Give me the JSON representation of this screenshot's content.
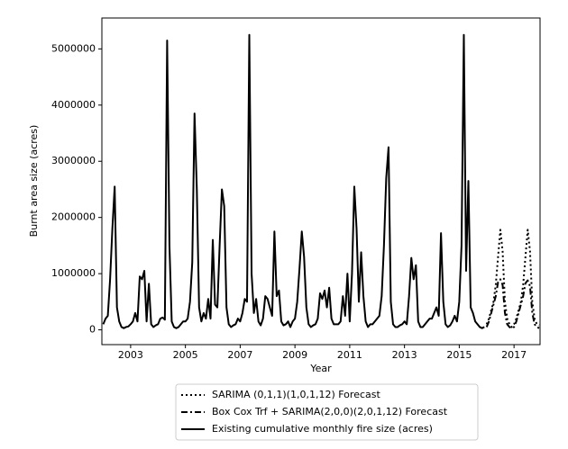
{
  "chart_data": {
    "type": "line",
    "x_label": "Year",
    "y_label": "Burnt area size (acres)",
    "xlim": [
      2001.95,
      2017.95
    ],
    "ylim": [
      -263000,
      5550000
    ],
    "xticks": [
      2003,
      2005,
      2007,
      2009,
      2011,
      2013,
      2015,
      2017
    ],
    "yticks": [
      0,
      1000000,
      2000000,
      3000000,
      4000000,
      5000000
    ],
    "legend": "below",
    "series": [
      {
        "name": "SARIMA (0,1,1)(1,0,1,12) Forecast",
        "color": "#000000",
        "dash": "dotted",
        "x": [
          2016,
          2016.083,
          2016.167,
          2016.25,
          2016.333,
          2016.417,
          2016.5,
          2016.583,
          2016.667,
          2016.75,
          2016.833,
          2016.917,
          2017,
          2017.083,
          2017.167,
          2017.25,
          2017.333,
          2017.417,
          2017.5,
          2017.583,
          2017.667,
          2017.75,
          2017.833,
          2017.917
        ],
        "values": [
          100000,
          200000,
          350000,
          500000,
          800000,
          1300000,
          1780000,
          1400000,
          500000,
          200000,
          100000,
          50000,
          100000,
          200000,
          350000,
          500000,
          800000,
          1300000,
          1780000,
          1400000,
          500000,
          200000,
          100000,
          80000
        ]
      },
      {
        "name": "Box Cox Trf + SARIMA(2,0,0)(2,0,1,12) Forecast",
        "color": "#000000",
        "dash": "dashdot",
        "x": [
          2016,
          2016.083,
          2016.167,
          2016.25,
          2016.333,
          2016.417,
          2016.5,
          2016.583,
          2016.667,
          2016.75,
          2016.833,
          2016.917,
          2017,
          2017.083,
          2017.167,
          2017.25,
          2017.333,
          2017.417,
          2017.5,
          2017.583,
          2017.667,
          2017.75,
          2017.833,
          2017.917
        ],
        "values": [
          50000,
          150000,
          300000,
          450000,
          600000,
          850000,
          900000,
          800000,
          300000,
          100000,
          50000,
          30000,
          50000,
          150000,
          300000,
          450000,
          600000,
          830000,
          880000,
          780000,
          300000,
          100000,
          50000,
          30000
        ]
      },
      {
        "name": "Existing cumulative monthly fire size (acres)",
        "color": "#000000",
        "dash": "solid",
        "x": [
          2002,
          2002.083,
          2002.167,
          2002.25,
          2002.333,
          2002.417,
          2002.5,
          2002.583,
          2002.667,
          2002.75,
          2002.833,
          2002.917,
          2003,
          2003.083,
          2003.167,
          2003.25,
          2003.333,
          2003.417,
          2003.5,
          2003.583,
          2003.667,
          2003.75,
          2003.833,
          2003.917,
          2004,
          2004.083,
          2004.167,
          2004.25,
          2004.333,
          2004.417,
          2004.5,
          2004.583,
          2004.667,
          2004.75,
          2004.833,
          2004.917,
          2005,
          2005.083,
          2005.167,
          2005.25,
          2005.333,
          2005.417,
          2005.5,
          2005.583,
          2005.667,
          2005.75,
          2005.833,
          2005.917,
          2006,
          2006.083,
          2006.167,
          2006.25,
          2006.333,
          2006.417,
          2006.5,
          2006.583,
          2006.667,
          2006.75,
          2006.833,
          2006.917,
          2007,
          2007.083,
          2007.167,
          2007.25,
          2007.333,
          2007.417,
          2007.5,
          2007.583,
          2007.667,
          2007.75,
          2007.833,
          2007.917,
          2008,
          2008.083,
          2008.167,
          2008.25,
          2008.333,
          2008.417,
          2008.5,
          2008.583,
          2008.667,
          2008.75,
          2008.833,
          2008.917,
          2009,
          2009.083,
          2009.167,
          2009.25,
          2009.333,
          2009.417,
          2009.5,
          2009.583,
          2009.667,
          2009.75,
          2009.833,
          2009.917,
          2010,
          2010.083,
          2010.167,
          2010.25,
          2010.333,
          2010.417,
          2010.5,
          2010.583,
          2010.667,
          2010.75,
          2010.833,
          2010.917,
          2011,
          2011.083,
          2011.167,
          2011.25,
          2011.333,
          2011.417,
          2011.5,
          2011.583,
          2011.667,
          2011.75,
          2011.833,
          2011.917,
          2012,
          2012.083,
          2012.167,
          2012.25,
          2012.333,
          2012.417,
          2012.5,
          2012.583,
          2012.667,
          2012.75,
          2012.833,
          2012.917,
          2013,
          2013.083,
          2013.167,
          2013.25,
          2013.333,
          2013.417,
          2013.5,
          2013.583,
          2013.667,
          2013.75,
          2013.833,
          2013.917,
          2014,
          2014.083,
          2014.167,
          2014.25,
          2014.333,
          2014.417,
          2014.5,
          2014.583,
          2014.667,
          2014.75,
          2014.833,
          2014.917,
          2015,
          2015.083,
          2015.167,
          2015.25,
          2015.333,
          2015.417,
          2015.5,
          2015.583,
          2015.667,
          2015.75,
          2015.833,
          2015.917
        ],
        "values": [
          100000,
          200000,
          250000,
          900000,
          1800000,
          2550000,
          400000,
          150000,
          50000,
          30000,
          50000,
          60000,
          100000,
          150000,
          300000,
          150000,
          950000,
          900000,
          1050000,
          150000,
          820000,
          100000,
          50000,
          80000,
          100000,
          200000,
          220000,
          180000,
          5150000,
          1500000,
          150000,
          50000,
          30000,
          50000,
          100000,
          150000,
          150000,
          200000,
          500000,
          1200000,
          3850000,
          2500000,
          400000,
          150000,
          300000,
          200000,
          550000,
          200000,
          1600000,
          450000,
          400000,
          1500000,
          2500000,
          2200000,
          400000,
          100000,
          50000,
          80000,
          100000,
          200000,
          150000,
          300000,
          550000,
          500000,
          5250000,
          1000000,
          300000,
          550000,
          150000,
          80000,
          200000,
          600000,
          550000,
          400000,
          250000,
          1750000,
          600000,
          700000,
          150000,
          80000,
          100000,
          150000,
          50000,
          150000,
          200000,
          500000,
          1100000,
          1750000,
          1300000,
          400000,
          100000,
          50000,
          80000,
          100000,
          200000,
          650000,
          550000,
          700000,
          400000,
          750000,
          200000,
          100000,
          100000,
          100000,
          150000,
          600000,
          250000,
          1000000,
          150000,
          1000000,
          2550000,
          1800000,
          500000,
          1380000,
          600000,
          150000,
          50000,
          100000,
          100000,
          150000,
          200000,
          250000,
          600000,
          1500000,
          2700000,
          3250000,
          500000,
          100000,
          50000,
          50000,
          80000,
          100000,
          150000,
          100000,
          600000,
          1280000,
          900000,
          1150000,
          150000,
          50000,
          50000,
          100000,
          150000,
          200000,
          200000,
          300000,
          400000,
          250000,
          1720000,
          500000,
          100000,
          50000,
          80000,
          150000,
          250000,
          150000,
          500000,
          1500000,
          5250000,
          1050000,
          2650000,
          400000,
          300000,
          150000,
          100000,
          50000,
          30000,
          50000
        ]
      }
    ]
  }
}
